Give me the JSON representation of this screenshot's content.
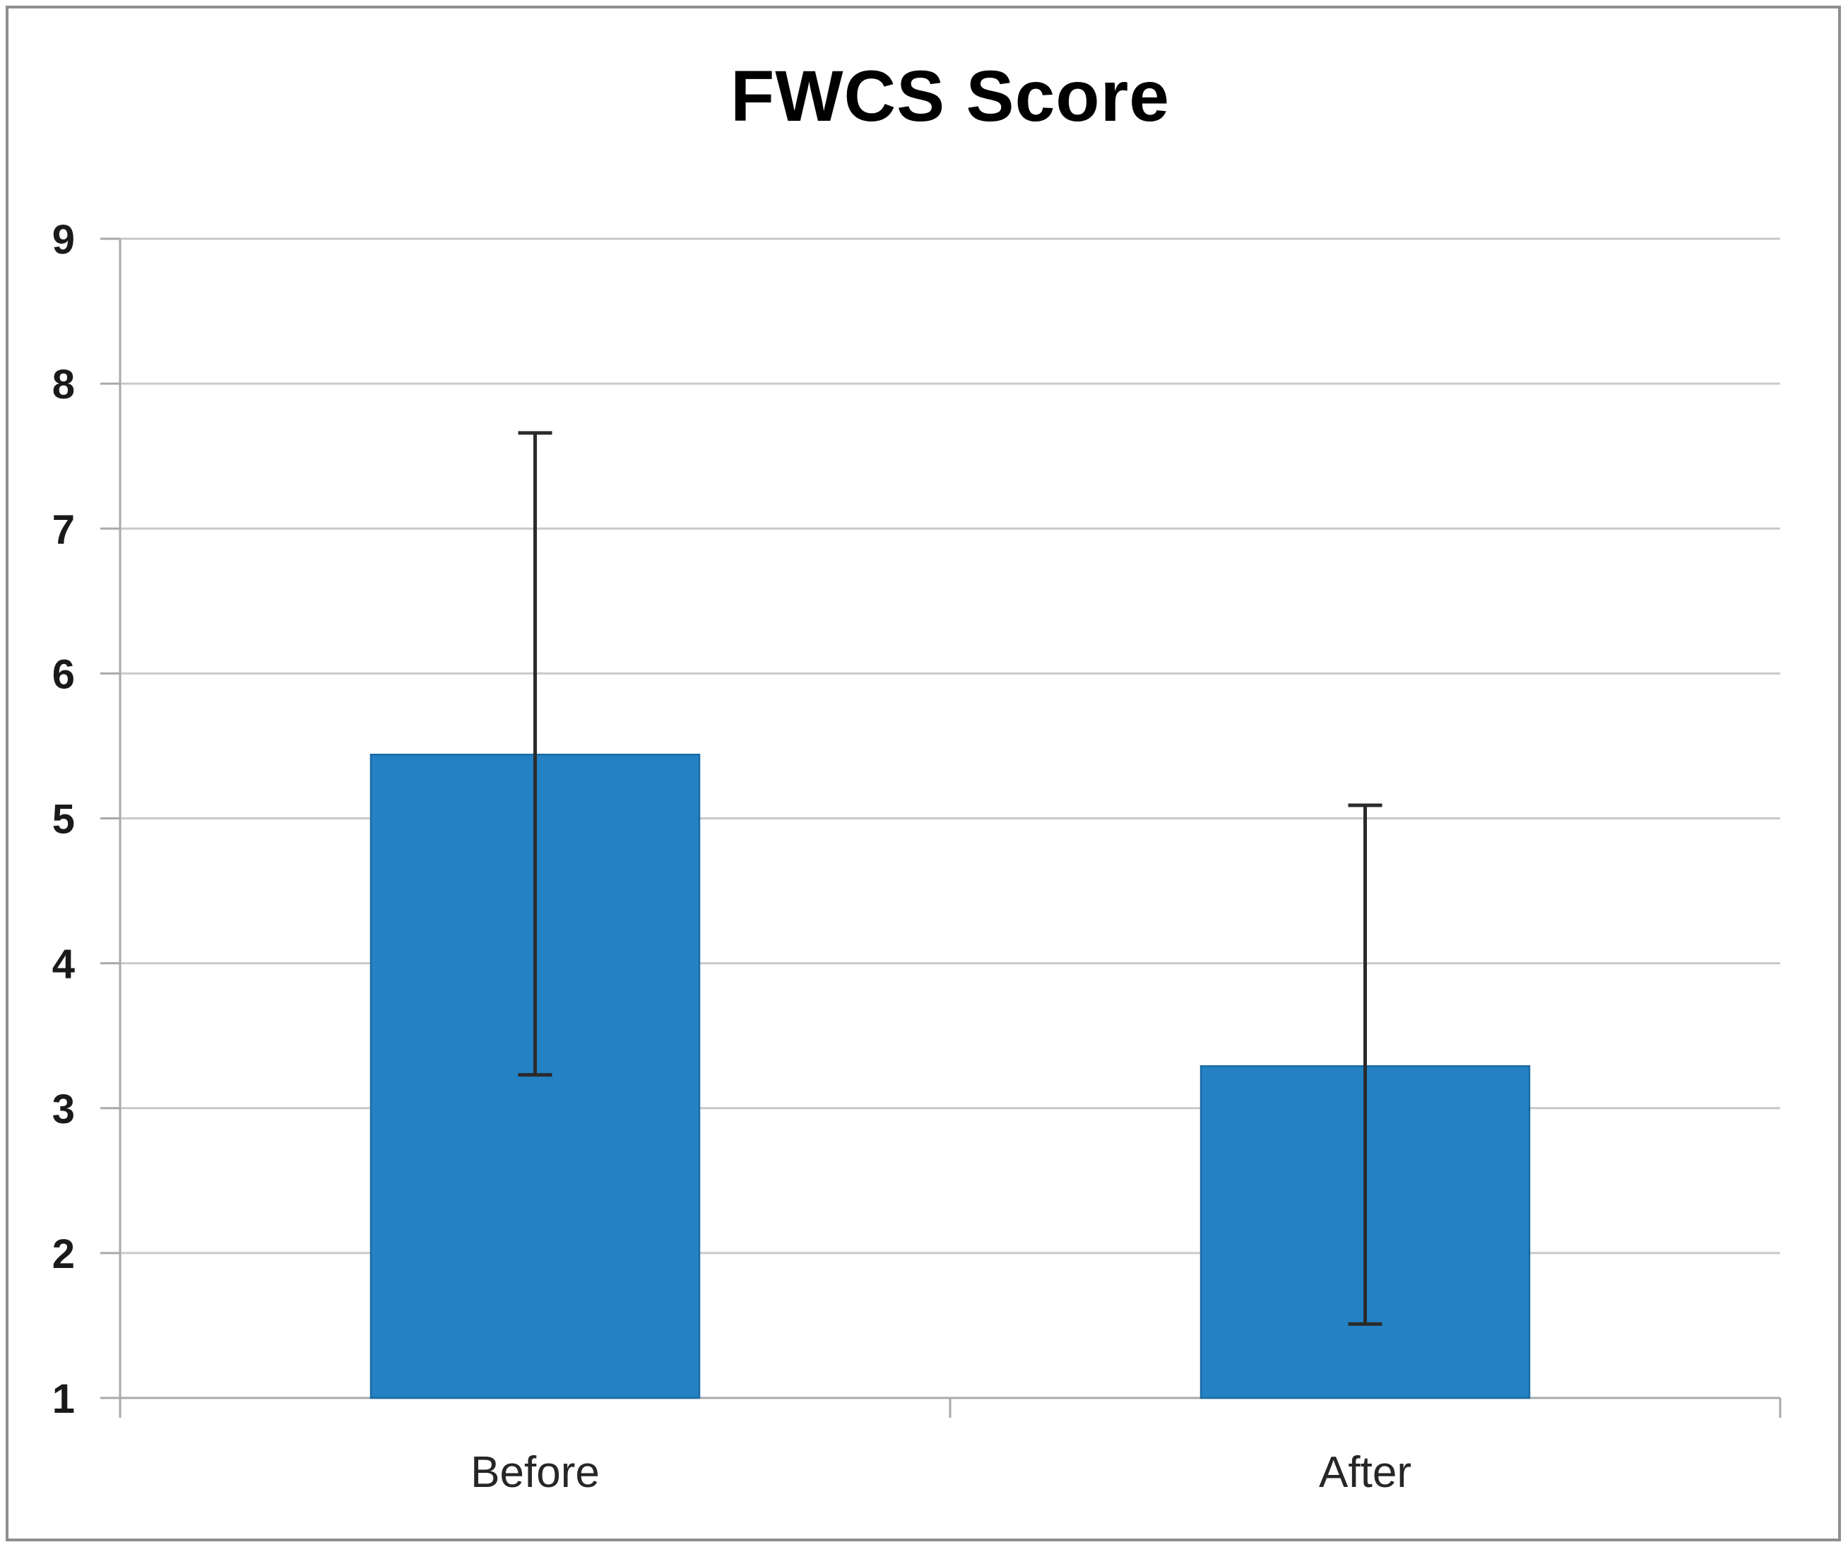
{
  "chart_data": {
    "type": "bar",
    "title": "FWCS Score",
    "categories": [
      "Before",
      "After"
    ],
    "series": [
      {
        "name": "FWCS Score",
        "values": [
          5.44,
          3.29
        ],
        "error_low": [
          3.23,
          1.51
        ],
        "error_high": [
          7.66,
          5.09
        ]
      }
    ],
    "ylim": [
      1,
      9
    ],
    "yticks": [
      1,
      2,
      3,
      4,
      5,
      6,
      7,
      8,
      9
    ],
    "xlabel": "",
    "ylabel": "",
    "grid": "horizontal",
    "legend": "none",
    "colors": {
      "bar_fill": "#2481C3",
      "bar_border": "#1A6BA6",
      "gridline": "#C9C9C9",
      "axis": "#A9A9A9",
      "error_bar": "#2B2B2B",
      "title": "#000000",
      "tick_label": "#1a1a1a",
      "category_label": "#262626",
      "outer_border": "#8e8e8e"
    }
  }
}
